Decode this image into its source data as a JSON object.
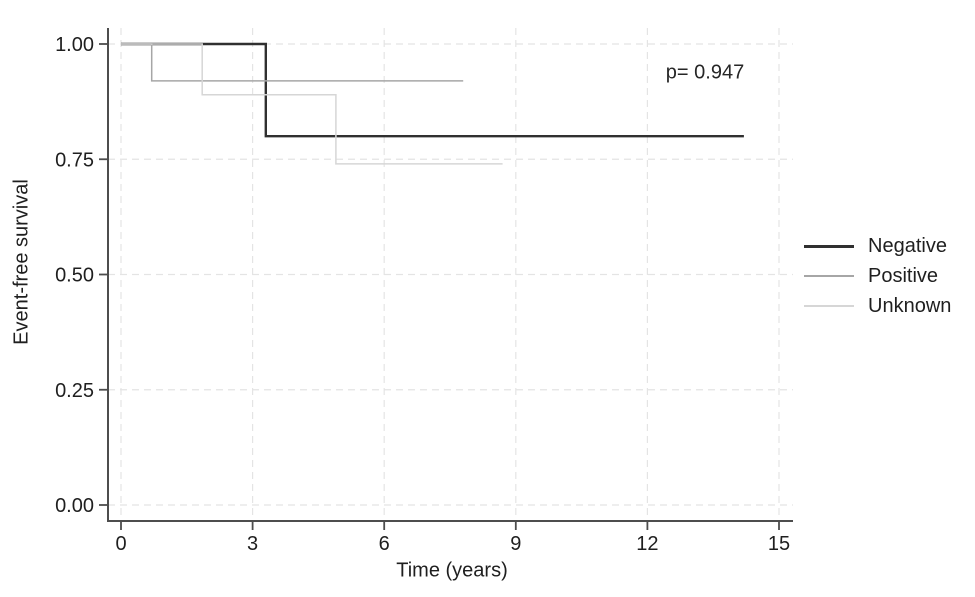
{
  "chart_data": {
    "type": "line",
    "subtype": "kaplan-meier-step",
    "title": "",
    "xlabel": "Time (years)",
    "ylabel": "Event-free survival",
    "xlim": [
      0,
      15
    ],
    "ylim": [
      0,
      1
    ],
    "x_ticks": [
      0,
      3,
      6,
      9,
      12,
      15
    ],
    "x_tick_labels": [
      "0",
      "3",
      "6",
      "9",
      "12",
      "15"
    ],
    "y_ticks": [
      0,
      0.25,
      0.5,
      0.75,
      1
    ],
    "y_tick_labels": [
      "0.00",
      "0.25",
      "0.50",
      "0.75",
      "1.00"
    ],
    "grid": true,
    "grid_style": "dashed",
    "legend_position": "right-outside",
    "annotation": {
      "text": "p= 0.947",
      "x_years": 13.3,
      "y_survival": 0.94
    },
    "series": [
      {
        "name": "Negative",
        "color": "#303030",
        "width": 2.4,
        "points": [
          [
            0,
            1.0
          ],
          [
            3.3,
            1.0
          ],
          [
            3.3,
            0.8
          ],
          [
            14.2,
            0.8
          ]
        ]
      },
      {
        "name": "Positive",
        "color": "#a6a6a6",
        "width": 1.5,
        "points": [
          [
            0,
            1.0
          ],
          [
            0.7,
            1.0
          ],
          [
            0.7,
            0.92
          ],
          [
            7.8,
            0.92
          ]
        ]
      },
      {
        "name": "Unknown",
        "color": "#d6d6d6",
        "width": 1.5,
        "points": [
          [
            0,
            1.0
          ],
          [
            1.85,
            1.0
          ],
          [
            1.85,
            0.89
          ],
          [
            4.9,
            0.89
          ],
          [
            4.9,
            0.74
          ],
          [
            8.7,
            0.74
          ]
        ]
      }
    ]
  }
}
